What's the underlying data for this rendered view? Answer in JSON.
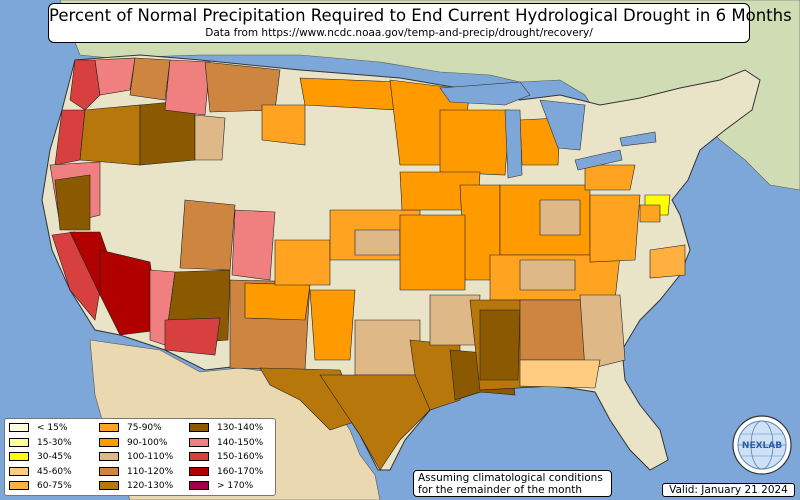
{
  "title": "Percent of Normal Precipitation Required to End Current Hydrological Drought in 6 Months",
  "subtitle": "Data from https://www.ncdc.noaa.gov/temp-and-precip/drought/recovery/",
  "note": [
    "Assuming climatological conditions",
    "for the remainder of the month"
  ],
  "valid": "Valid: January 21 2024",
  "logo": {
    "text": "NEXLAB",
    "icon": "globe-logo"
  },
  "legend": [
    {
      "label": "< 15%",
      "color": "#ffffe0"
    },
    {
      "label": "15-30%",
      "color": "#ffffa0"
    },
    {
      "label": "30-45%",
      "color": "#ffff00"
    },
    {
      "label": "45-60%",
      "color": "#ffcc80"
    },
    {
      "label": "60-75%",
      "color": "#ffb040"
    },
    {
      "label": "75-90%",
      "color": "#ffa320"
    },
    {
      "label": "90-100%",
      "color": "#ff9a00"
    },
    {
      "label": "100-110%",
      "color": "#deb887"
    },
    {
      "label": "110-120%",
      "color": "#cd853f"
    },
    {
      "label": "120-130%",
      "color": "#b8770b"
    },
    {
      "label": "130-140%",
      "color": "#8b5a00"
    },
    {
      "label": "140-150%",
      "color": "#f08080"
    },
    {
      "label": "150-160%",
      "color": "#d84040"
    },
    {
      "label": "160-170%",
      "color": "#b00000"
    },
    {
      "label": "> 170%",
      "color": "#a0004a"
    }
  ],
  "colors": {
    "ocean": "#7da7d9",
    "land": "#e9e4c8",
    "canada": "#cfdcb4",
    "mexico": "#ead9b0",
    "lakes": "#7da7d9",
    "borders": "#333333"
  }
}
